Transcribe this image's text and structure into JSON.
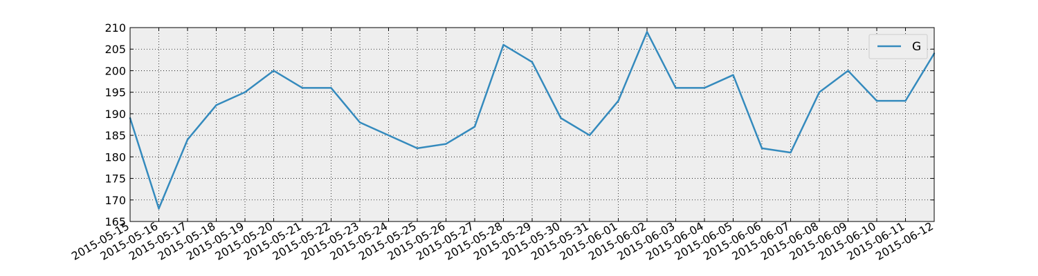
{
  "chart_data": {
    "type": "line",
    "title": "",
    "xlabel": "",
    "ylabel": "",
    "x": [
      "2015-05-15",
      "2015-05-16",
      "2015-05-17",
      "2015-05-18",
      "2015-05-19",
      "2015-05-20",
      "2015-05-21",
      "2015-05-22",
      "2015-05-23",
      "2015-05-24",
      "2015-05-25",
      "2015-05-26",
      "2015-05-27",
      "2015-05-28",
      "2015-05-29",
      "2015-05-30",
      "2015-05-31",
      "2015-06-01",
      "2015-06-02",
      "2015-06-03",
      "2015-06-04",
      "2015-06-05",
      "2015-06-06",
      "2015-06-07",
      "2015-06-08",
      "2015-06-09",
      "2015-06-10",
      "2015-06-11",
      "2015-06-12"
    ],
    "series": [
      {
        "name": "G",
        "color": "#348abd",
        "values": [
          189,
          168,
          184,
          192,
          195,
          200,
          196,
          196,
          188,
          185,
          182,
          183,
          187,
          206,
          202,
          189,
          185,
          193,
          209,
          196,
          196,
          199,
          182,
          181,
          195,
          200,
          193,
          193,
          204
        ]
      }
    ],
    "ylim": [
      165,
      210
    ],
    "yticks": [
      165,
      170,
      175,
      180,
      185,
      190,
      195,
      200,
      205,
      210
    ],
    "grid": true,
    "legend_position": "top-right",
    "plot_background": "#eeeeee"
  }
}
